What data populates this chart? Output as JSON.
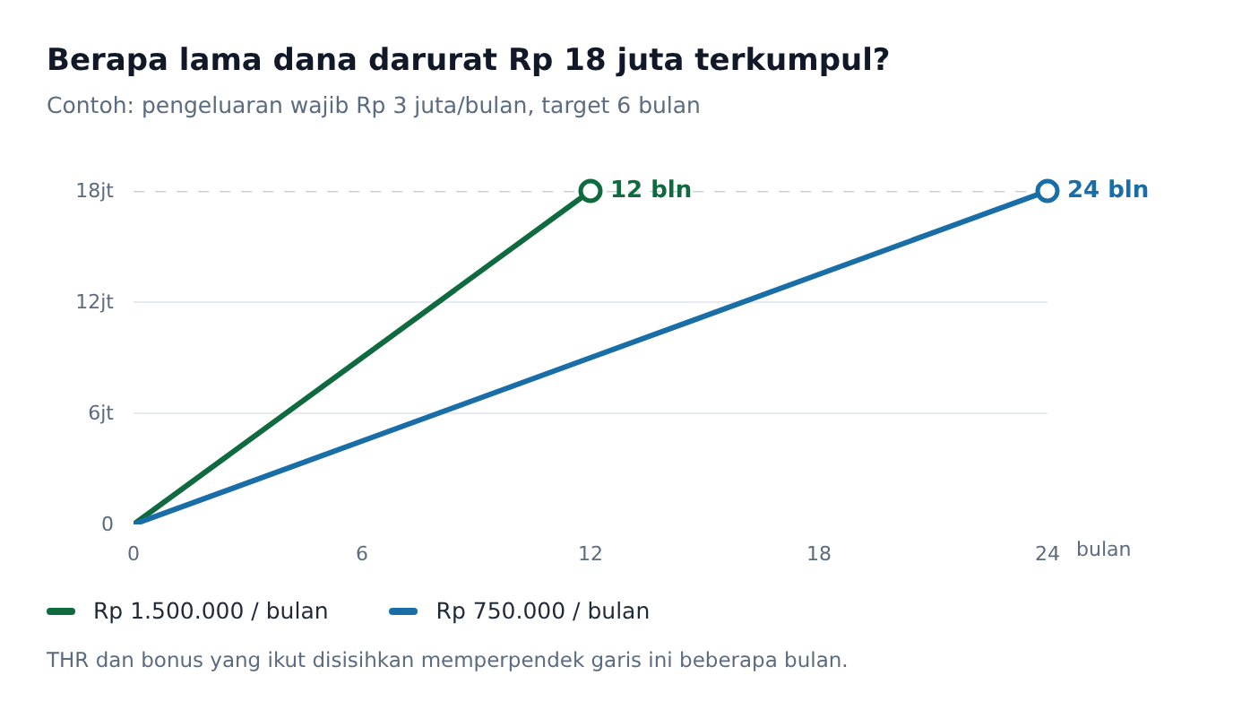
{
  "chart_data": {
    "type": "line",
    "title": "Berapa lama dana darurat Rp 18 juta terkumpul?",
    "subtitle": "Contoh: pengeluaran wajib Rp 3 juta/bulan, target 6 bulan",
    "xlabel": "bulan",
    "series": [
      {
        "name": "Rp 1.500.000 / bulan",
        "color": "#0f6b3f",
        "x": [
          0,
          12
        ],
        "values": [
          0,
          18
        ]
      },
      {
        "name": "Rp 750.000 / bulan",
        "color": "#1a6ea8",
        "x": [
          0,
          6,
          12,
          18,
          24
        ],
        "values": [
          0,
          4.5,
          9,
          13.5,
          18
        ]
      },
      {
        "type": "scatter",
        "marker": "circle",
        "x": [
          12,
          24
        ],
        "values": [
          18,
          18
        ],
        "colors": [
          "#0f6b3f",
          "#1a6ea8"
        ]
      }
    ],
    "xlim": [
      0,
      24
    ],
    "ylim": [
      0,
      18
    ],
    "xticks": [
      0,
      6,
      12,
      18,
      24
    ],
    "yticks": [
      0,
      {
        "value": 6,
        "label": "6jt"
      },
      {
        "value": 12,
        "label": "12jt"
      },
      {
        "value": 18,
        "label": "18jt"
      }
    ],
    "ref_lines": [
      {
        "axis": "y",
        "value": 18,
        "label": null,
        "color": "#c9d3df",
        "line_style": "dashed"
      }
    ],
    "annotations": [
      {
        "text": "12 bln",
        "x": 12,
        "y": 18
      },
      {
        "text": "24 bln",
        "x": 24,
        "y": 18
      },
      "THR dan bonus yang ikut disisihkan memperpendek garis ini beberapa bulan."
    ],
    "grid": "y",
    "legend": "bottom",
    "marker": "none",
    "line_style": "solid"
  }
}
